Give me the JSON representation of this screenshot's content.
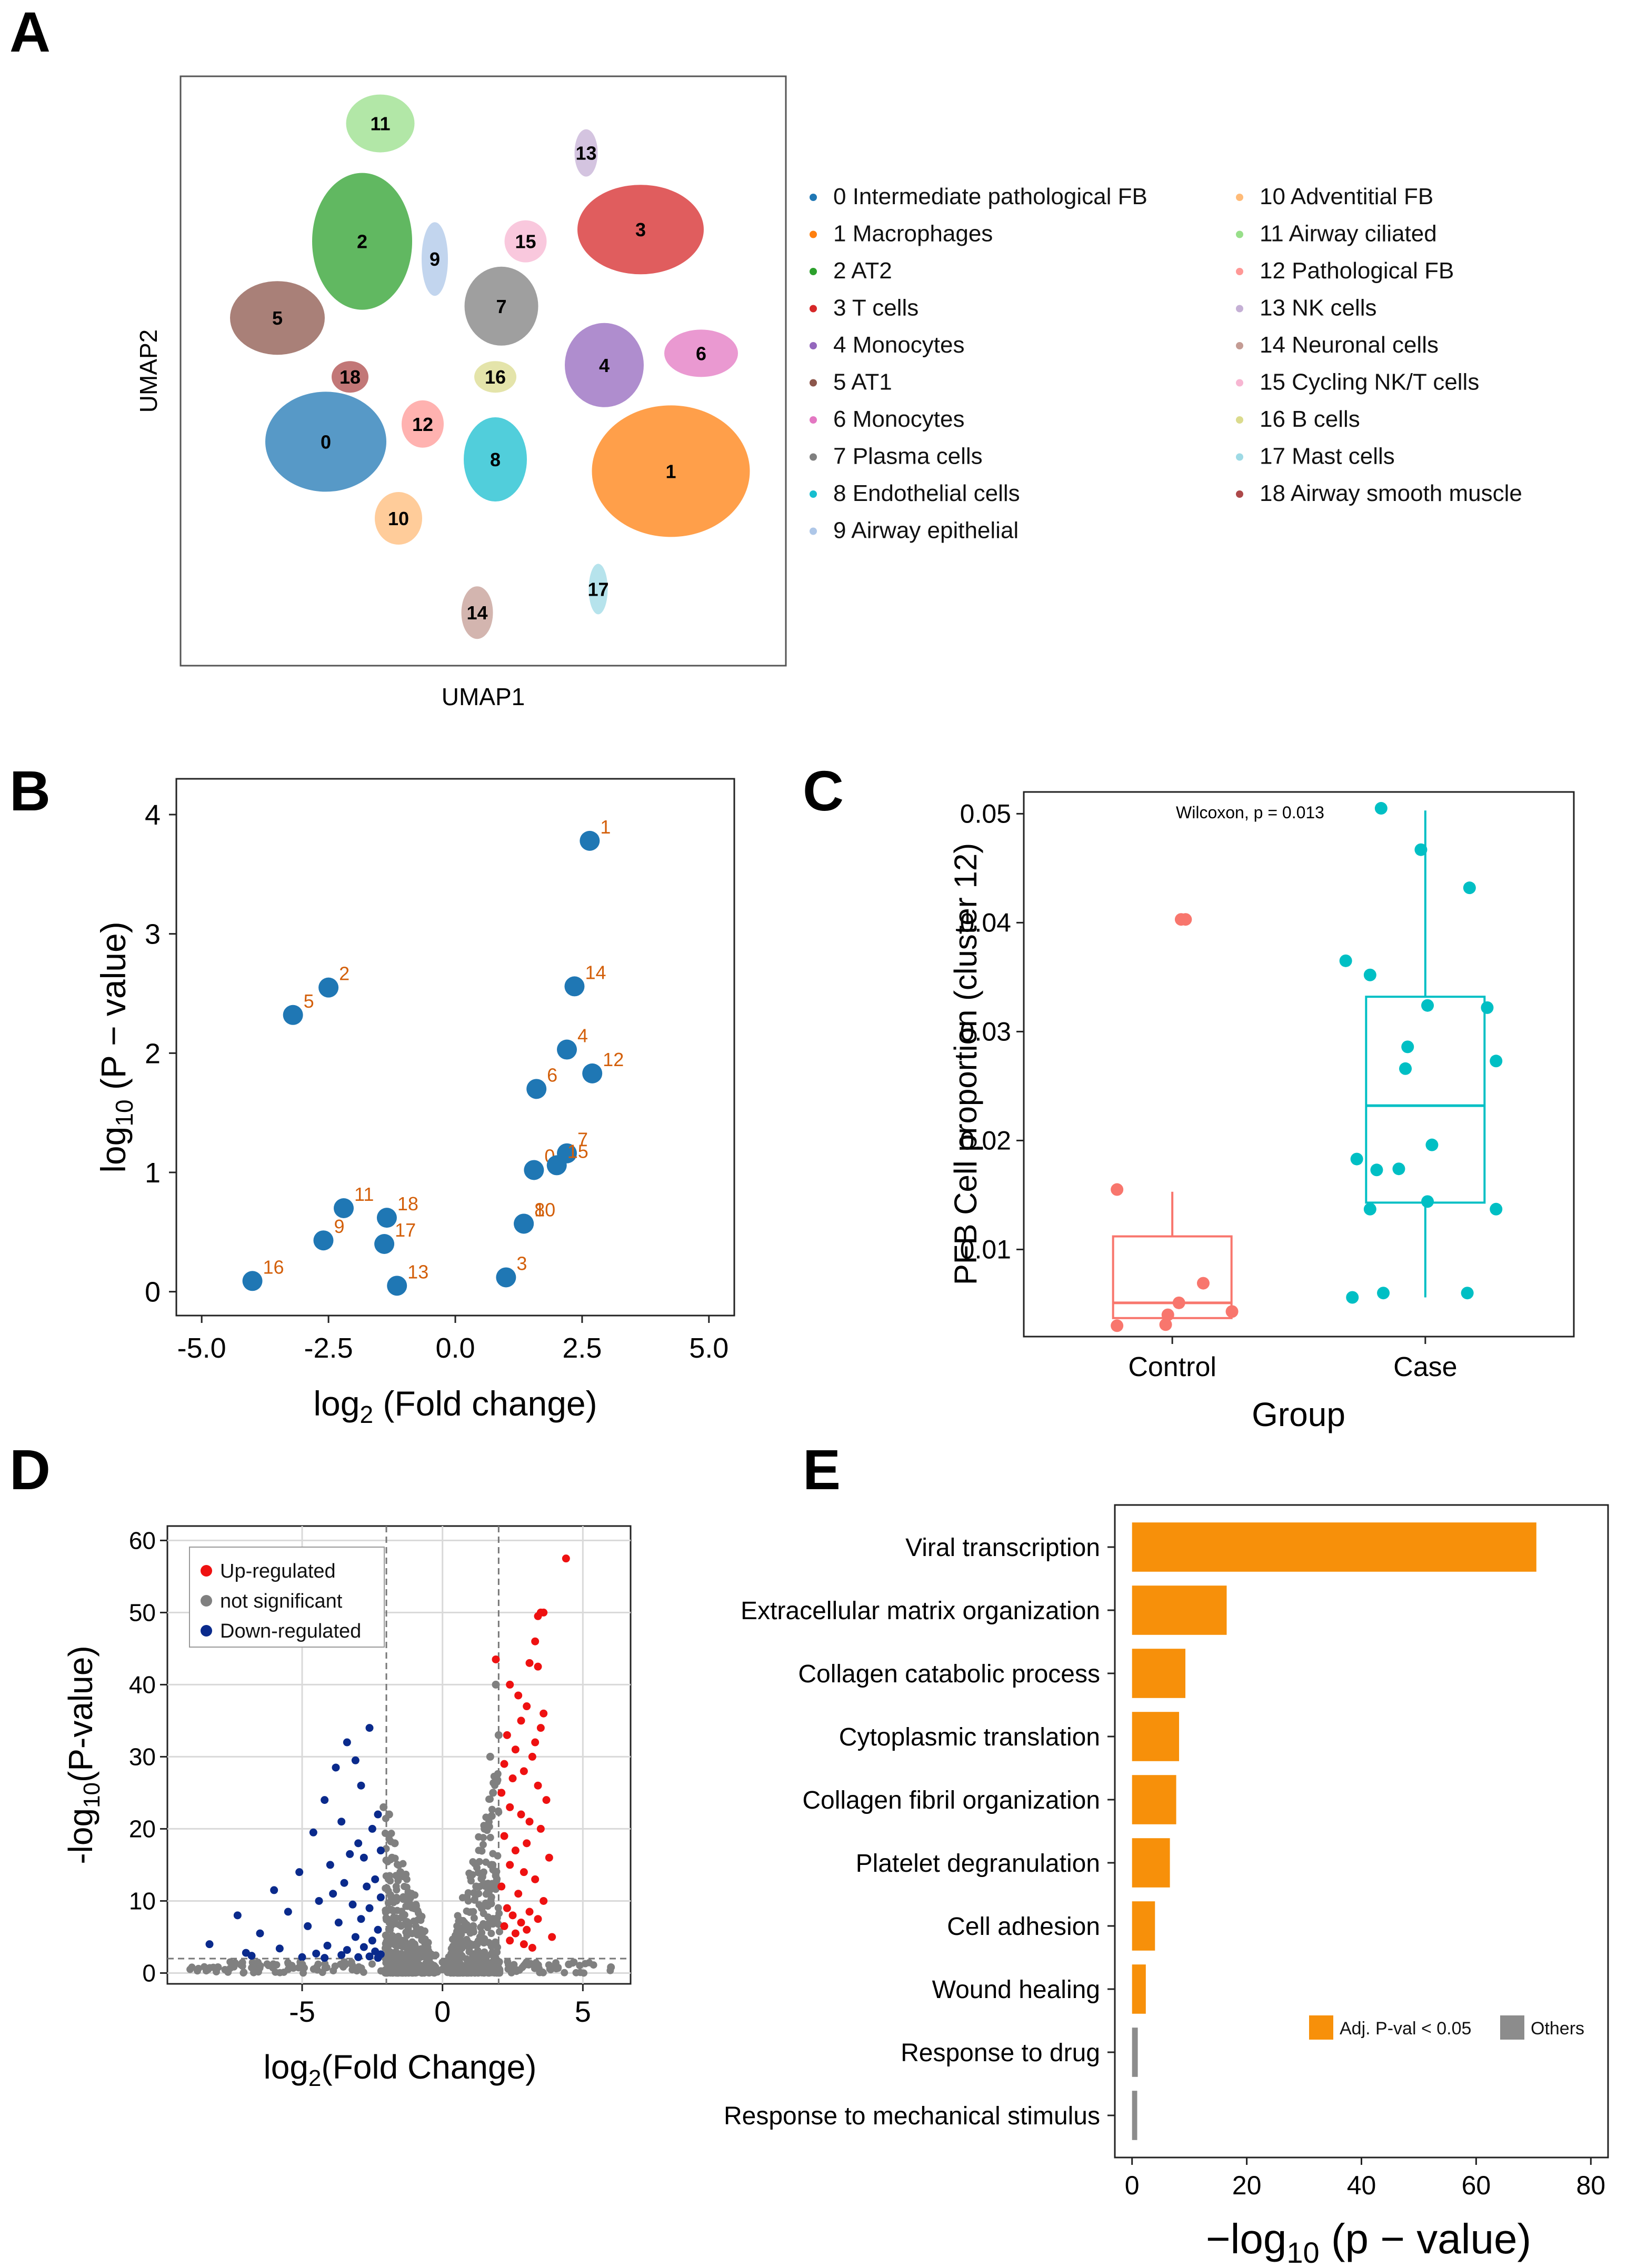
{
  "panels": {
    "A": {
      "letter": "A",
      "xlabel": "UMAP1",
      "ylabel": "UMAP2",
      "clusters": [
        {
          "id": "0",
          "label": "0 Intermediate pathological FB",
          "color": "#1f77b4"
        },
        {
          "id": "1",
          "label": "1 Macrophages",
          "color": "#ff7f0e"
        },
        {
          "id": "2",
          "label": "2 AT2",
          "color": "#2ca02c"
        },
        {
          "id": "3",
          "label": "3 T cells",
          "color": "#d62728"
        },
        {
          "id": "4",
          "label": "4 Monocytes",
          "color": "#9467bd"
        },
        {
          "id": "5",
          "label": "5 AT1",
          "color": "#8c564b"
        },
        {
          "id": "6",
          "label": "6 Monocytes",
          "color": "#e377c2"
        },
        {
          "id": "7",
          "label": "7 Plasma cells",
          "color": "#7f7f7f"
        },
        {
          "id": "8",
          "label": "8 Endothelial cells",
          "color": "#17becf"
        },
        {
          "id": "9",
          "label": "9 Airway epithelial",
          "color": "#aec7e8"
        },
        {
          "id": "10",
          "label": "10 Adventitial FB",
          "color": "#ffbb78"
        },
        {
          "id": "11",
          "label": "11 Airway ciliated",
          "color": "#98df8a"
        },
        {
          "id": "12",
          "label": "12 Pathological FB",
          "color": "#ff9896"
        },
        {
          "id": "13",
          "label": "13 NK cells",
          "color": "#c5b0d5"
        },
        {
          "id": "14",
          "label": "14 Neuronal cells",
          "color": "#c49c94"
        },
        {
          "id": "15",
          "label": "15 Cycling NK/T cells",
          "color": "#f7b6d2"
        },
        {
          "id": "16",
          "label": "16 B cells",
          "color": "#dbdb8d"
        },
        {
          "id": "17",
          "label": "17 Mast cells",
          "color": "#9edae5"
        },
        {
          "id": "18",
          "label": "18 Airway smooth muscle",
          "color": "#ad494a"
        }
      ]
    },
    "B": {
      "letter": "B",
      "point_color": "#1f77b4",
      "label_color": "#d35f0a"
    },
    "C": {
      "letter": "C",
      "control_color": "#f8766d",
      "case_color": "#00bfc4"
    },
    "D": {
      "letter": "D",
      "legend": [
        {
          "label": "Up-regulated",
          "color": "#ee1111"
        },
        {
          "label": "not significant",
          "color": "#808080"
        },
        {
          "label": "Down-regulated",
          "color": "#0a2a8c"
        }
      ]
    },
    "E": {
      "letter": "E",
      "legend": [
        {
          "label": "Adj. P-val < 0.05",
          "color": "#f7900a"
        },
        {
          "label": "Others",
          "color": "#8c8c8c"
        }
      ]
    }
  },
  "chart_data": [
    {
      "panel": "A",
      "type": "scatter",
      "title": "",
      "xlabel": "UMAP1",
      "ylabel": "UMAP2",
      "note": "UMAP embedding; cluster label centroids in arbitrary UMAP units (0-100)",
      "x": [
        24,
        81,
        30,
        76,
        70,
        16,
        86,
        53,
        52,
        42,
        36,
        33,
        40,
        67,
        49,
        57,
        52,
        69,
        28
      ],
      "y": [
        38,
        33,
        72,
        74,
        51,
        59,
        53,
        61,
        35,
        69,
        25,
        92,
        41,
        87,
        9,
        72,
        49,
        13,
        49
      ],
      "labels": [
        "0",
        "1",
        "2",
        "3",
        "4",
        "5",
        "6",
        "7",
        "8",
        "9",
        "10",
        "11",
        "12",
        "13",
        "14",
        "15",
        "16",
        "17",
        "18"
      ]
    },
    {
      "panel": "B",
      "type": "scatter",
      "title": "",
      "xlabel": "log2 (Fold change)",
      "ylabel": "log10 (P − value)",
      "xlim": [
        -5.5,
        5.5
      ],
      "ylim": [
        -0.2,
        4.3
      ],
      "xticks": [
        "-5.0",
        "-2.5",
        "0.0",
        "2.5",
        "5.0"
      ],
      "yticks": [
        "0",
        "1",
        "2",
        "3",
        "4"
      ],
      "x": [
        1.55,
        2.65,
        -2.5,
        1.0,
        2.2,
        -3.2,
        1.6,
        2.2,
        1.35,
        -2.6,
        1.35,
        -2.2,
        2.7,
        -1.15,
        2.35,
        2.0,
        -4.0,
        -1.4,
        -1.35
      ],
      "y": [
        1.02,
        3.78,
        2.55,
        0.12,
        2.03,
        2.32,
        1.7,
        1.16,
        0.57,
        0.43,
        0.57,
        0.7,
        1.83,
        0.05,
        2.56,
        1.06,
        0.09,
        0.4,
        0.62
      ],
      "labels": [
        "0",
        "1",
        "2",
        "3",
        "4",
        "5",
        "6",
        "7",
        "8",
        "9",
        "10",
        "11",
        "12",
        "13",
        "14",
        "15",
        "16",
        "17",
        "18"
      ]
    },
    {
      "panel": "C",
      "type": "box",
      "title": "",
      "annotation": "Wilcoxon, p = 0.013",
      "xlabel": "Group",
      "ylabel": "PFB Cell proportion (cluster 12)",
      "categories": [
        "Control",
        "Case"
      ],
      "ylim": [
        0.002,
        0.052
      ],
      "yticks": [
        "0.01",
        "0.02",
        "0.03",
        "0.04",
        "0.05"
      ],
      "boxes": [
        {
          "group": "Control",
          "min": 0.0037,
          "q1": 0.0037,
          "median": 0.0051,
          "q3": 0.0112,
          "max": 0.0153
        },
        {
          "group": "Case",
          "min": 0.0056,
          "q1": 0.0143,
          "median": 0.0232,
          "q3": 0.0332,
          "max": 0.0503
        }
      ],
      "points": [
        {
          "group": "Control",
          "jitter": -0.25,
          "value": 0.0155
        },
        {
          "group": "Control",
          "jitter": -0.25,
          "value": 0.003
        },
        {
          "group": "Control",
          "jitter": -0.02,
          "value": 0.004
        },
        {
          "group": "Control",
          "jitter": 0.04,
          "value": 0.0403
        },
        {
          "group": "Control",
          "jitter": 0.06,
          "value": 0.0403
        },
        {
          "group": "Control",
          "jitter": 0.03,
          "value": 0.0051
        },
        {
          "group": "Control",
          "jitter": 0.14,
          "value": 0.0069
        },
        {
          "group": "Control",
          "jitter": 0.27,
          "value": 0.0043
        },
        {
          "group": "Control",
          "jitter": -0.03,
          "value": 0.0031
        },
        {
          "group": "Case",
          "jitter": -0.36,
          "value": 0.0365
        },
        {
          "group": "Case",
          "jitter": -0.25,
          "value": 0.0352
        },
        {
          "group": "Case",
          "jitter": -0.2,
          "value": 0.0505
        },
        {
          "group": "Case",
          "jitter": -0.02,
          "value": 0.0467
        },
        {
          "group": "Case",
          "jitter": 0.2,
          "value": 0.0432
        },
        {
          "group": "Case",
          "jitter": 0.01,
          "value": 0.0324
        },
        {
          "group": "Case",
          "jitter": 0.28,
          "value": 0.0322
        },
        {
          "group": "Case",
          "jitter": -0.08,
          "value": 0.0286
        },
        {
          "group": "Case",
          "jitter": 0.32,
          "value": 0.0273
        },
        {
          "group": "Case",
          "jitter": -0.09,
          "value": 0.0266
        },
        {
          "group": "Case",
          "jitter": 0.03,
          "value": 0.0196
        },
        {
          "group": "Case",
          "jitter": -0.31,
          "value": 0.0183
        },
        {
          "group": "Case",
          "jitter": -0.22,
          "value": 0.0173
        },
        {
          "group": "Case",
          "jitter": -0.12,
          "value": 0.0174
        },
        {
          "group": "Case",
          "jitter": -0.25,
          "value": 0.0137
        },
        {
          "group": "Case",
          "jitter": 0.32,
          "value": 0.0137
        },
        {
          "group": "Case",
          "jitter": 0.01,
          "value": 0.0144
        },
        {
          "group": "Case",
          "jitter": -0.33,
          "value": 0.0056
        },
        {
          "group": "Case",
          "jitter": -0.19,
          "value": 0.006
        },
        {
          "group": "Case",
          "jitter": 0.19,
          "value": 0.006
        }
      ]
    },
    {
      "panel": "D",
      "type": "scatter",
      "title": "",
      "xlabel": "log2(Fold Change)",
      "ylabel": "-log10(P-value)",
      "xlim": [
        -9.8,
        6.7
      ],
      "ylim": [
        -1.5,
        62
      ],
      "xticks": [
        "-5",
        "0",
        "5"
      ],
      "yticks": [
        "0",
        "10",
        "20",
        "30",
        "40",
        "50",
        "60"
      ],
      "fc_thresholds": [
        -2,
        2
      ],
      "p_threshold": 2,
      "series": [
        {
          "name": "Up-regulated",
          "x": [
            4.4,
            3.5,
            3.6,
            3.4,
            3.3,
            1.9,
            3.1,
            3.4,
            2.4,
            2.7,
            3.0,
            3.6,
            2.8,
            3.5,
            2.3,
            3.3,
            2.6,
            3.2,
            2.2,
            2.9,
            2.5,
            3.4,
            2.1,
            3.7,
            2.4,
            2.8,
            3.1,
            3.5,
            2.2,
            3.0,
            2.6,
            3.8,
            2.4,
            2.9,
            3.3,
            2.1,
            2.7,
            3.6,
            2.3,
            3.1,
            2.5,
            3.4,
            2.8,
            2.2,
            3.0,
            2.6,
            3.9,
            2.4,
            2.9,
            3.2
          ],
          "y": [
            57.5,
            50,
            50,
            49.5,
            46,
            43.5,
            43,
            42.5,
            40,
            38.5,
            37,
            36,
            35,
            34,
            33,
            32,
            31,
            30,
            29,
            28,
            27,
            26,
            25,
            24,
            23,
            22,
            21,
            20,
            19,
            18,
            17,
            16,
            15,
            14,
            13,
            12,
            11,
            10,
            9,
            8.5,
            8,
            7.5,
            7,
            6.5,
            6,
            5.5,
            5,
            4.5,
            4,
            3.5
          ]
        },
        {
          "name": "Down-regulated",
          "x": [
            -2.6,
            -3.4,
            -3.1,
            -3.8,
            -2.9,
            -4.2,
            -2.3,
            -3.6,
            -2.5,
            -4.6,
            -3.0,
            -2.2,
            -3.3,
            -2.8,
            -4.0,
            -5.1,
            -2.4,
            -3.5,
            -2.7,
            -6.0,
            -3.9,
            -2.2,
            -4.4,
            -3.2,
            -2.6,
            -5.5,
            -7.3,
            -2.9,
            -3.7,
            -4.8,
            -2.3,
            -6.5,
            -3.1,
            -2.5,
            -8.3,
            -4.1,
            -2.8,
            -5.8,
            -3.4,
            -2.4,
            -7.0,
            -4.5,
            -2.2,
            -3.6,
            -6.8,
            -2.6,
            -5.0,
            -3.0,
            -2.3,
            -4.2
          ],
          "y": [
            34,
            32,
            29.5,
            28.5,
            26,
            24,
            22,
            21,
            20,
            19.5,
            18,
            17,
            16.5,
            16,
            15,
            14,
            13,
            12.5,
            12,
            11.5,
            11,
            10.5,
            10,
            9.5,
            9,
            8.5,
            8,
            7.5,
            7,
            6.5,
            6,
            5.5,
            5,
            4.5,
            4,
            3.8,
            3.6,
            3.4,
            3.2,
            3.0,
            2.8,
            2.7,
            2.6,
            2.5,
            2.4,
            2.3,
            2.2,
            2.2,
            2.1,
            2.1
          ]
        },
        {
          "name": "not significant",
          "x": [
            -1.9,
            -1.7,
            -1.5,
            -1.2,
            -0.9,
            -0.6,
            1.9,
            1.7,
            1.5,
            1.2,
            0.9,
            0.6,
            -1.8,
            -1.4,
            -1.0,
            1.8,
            1.4,
            1.0,
            -2.1,
            2.0,
            -3.5,
            -5.0,
            -6.5,
            -8.0,
            3.0,
            4.5,
            6.0,
            -0.3,
            0.3,
            0.0
          ],
          "y": [
            22,
            18,
            14,
            10,
            6,
            3,
            40,
            30,
            20,
            12,
            6,
            3,
            16,
            8,
            4,
            25,
            9,
            4,
            23,
            33,
            1.5,
            1.2,
            1.0,
            0.8,
            1.5,
            1.2,
            0.8,
            1.0,
            1.0,
            0.5
          ]
        }
      ]
    },
    {
      "panel": "E",
      "type": "bar",
      "orientation": "horizontal",
      "title": "",
      "xlabel": "−log10 (p − value)",
      "ylabel": "",
      "xlim": [
        -3,
        83
      ],
      "xticks": [
        "0",
        "20",
        "40",
        "60",
        "80"
      ],
      "categories": [
        "Viral transcription",
        "Extracellular matrix organization",
        "Collagen catabolic process",
        "Cytoplasmic translation",
        "Collagen fibril organization",
        "Platelet degranulation",
        "Cell adhesion",
        "Wound healing",
        "Response to drug",
        "Response to mechanical stimulus"
      ],
      "values": [
        70.5,
        16.5,
        9.3,
        8.2,
        7.7,
        6.6,
        4.0,
        2.4,
        1.0,
        0.9
      ],
      "significant": [
        true,
        true,
        true,
        true,
        true,
        true,
        true,
        true,
        false,
        false
      ]
    }
  ]
}
